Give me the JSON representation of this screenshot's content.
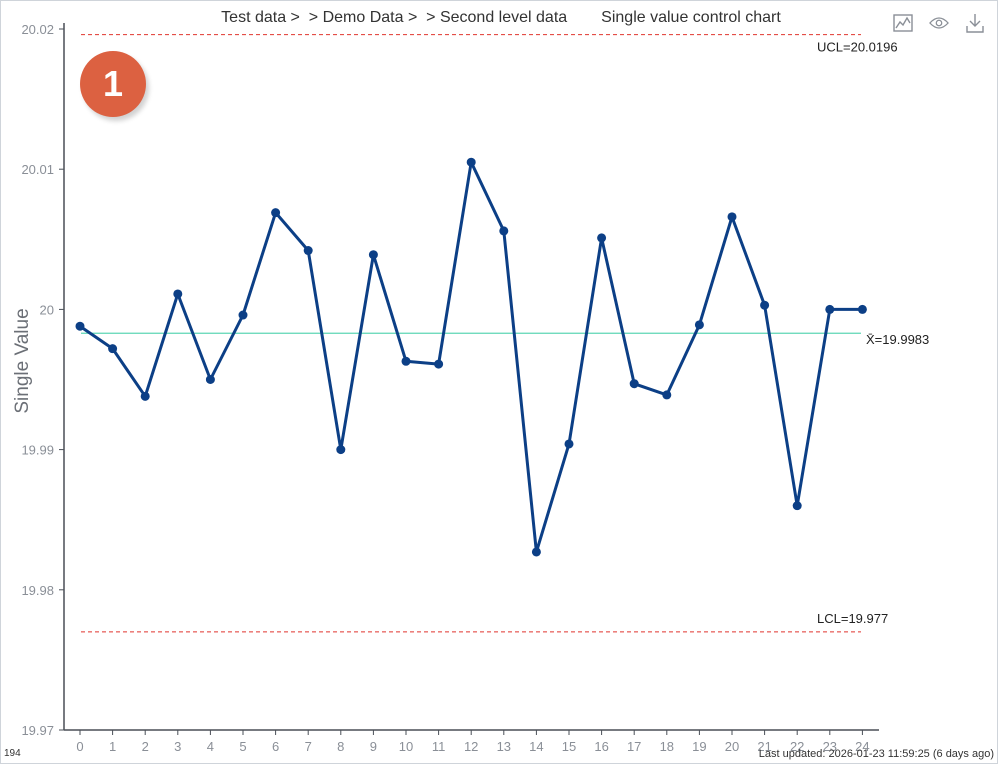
{
  "breadcrumb": "Test data >  > Demo Data >  > Second level data",
  "chart_title": "Single value control chart",
  "badge": "1",
  "footer": {
    "count": "194",
    "last_updated": "Last updated: 2026-01-23 11:59:25 (6 days ago)"
  },
  "toolbar": {
    "icons": [
      "chart-icon",
      "eye-icon",
      "download-icon"
    ]
  },
  "colors": {
    "series": "#0c3f86",
    "center_line": "#5ed6b4",
    "limit": "#e0352f",
    "badge": "#dc6141",
    "axis": "#4a4f57"
  },
  "chart_data": {
    "type": "line",
    "title": "Single value control chart",
    "ylabel": "Single Value",
    "xlabel": "",
    "x": [
      0,
      1,
      2,
      3,
      4,
      5,
      6,
      7,
      8,
      9,
      10,
      11,
      12,
      13,
      14,
      15,
      16,
      17,
      18,
      19,
      20,
      21,
      22,
      23,
      24
    ],
    "values": [
      19.9988,
      19.9972,
      19.9938,
      20.0011,
      19.995,
      19.9996,
      20.0069,
      20.0042,
      19.99,
      20.0039,
      19.9963,
      19.9961,
      20.0105,
      20.0056,
      19.9827,
      19.9904,
      20.0051,
      19.9947,
      19.9939,
      19.9989,
      20.0066,
      20.0003,
      19.986,
      20.0,
      20.0
    ],
    "ylim": [
      19.97,
      20.02
    ],
    "yticks": [
      {
        "value": 20.02,
        "label": "20.02"
      },
      {
        "value": 20.01,
        "label": "20.01"
      },
      {
        "value": 20.0,
        "label": "20"
      },
      {
        "value": 19.99,
        "label": "19.99"
      },
      {
        "value": 19.98,
        "label": "19.98"
      },
      {
        "value": 19.97,
        "label": "19.97"
      }
    ],
    "center": {
      "value": 19.9983,
      "label": "X̄=19.9983"
    },
    "ucl": {
      "value": 20.0196,
      "label": "UCL=20.0196"
    },
    "lcl": {
      "value": 19.977,
      "label": "LCL=19.977"
    },
    "grid": false
  }
}
